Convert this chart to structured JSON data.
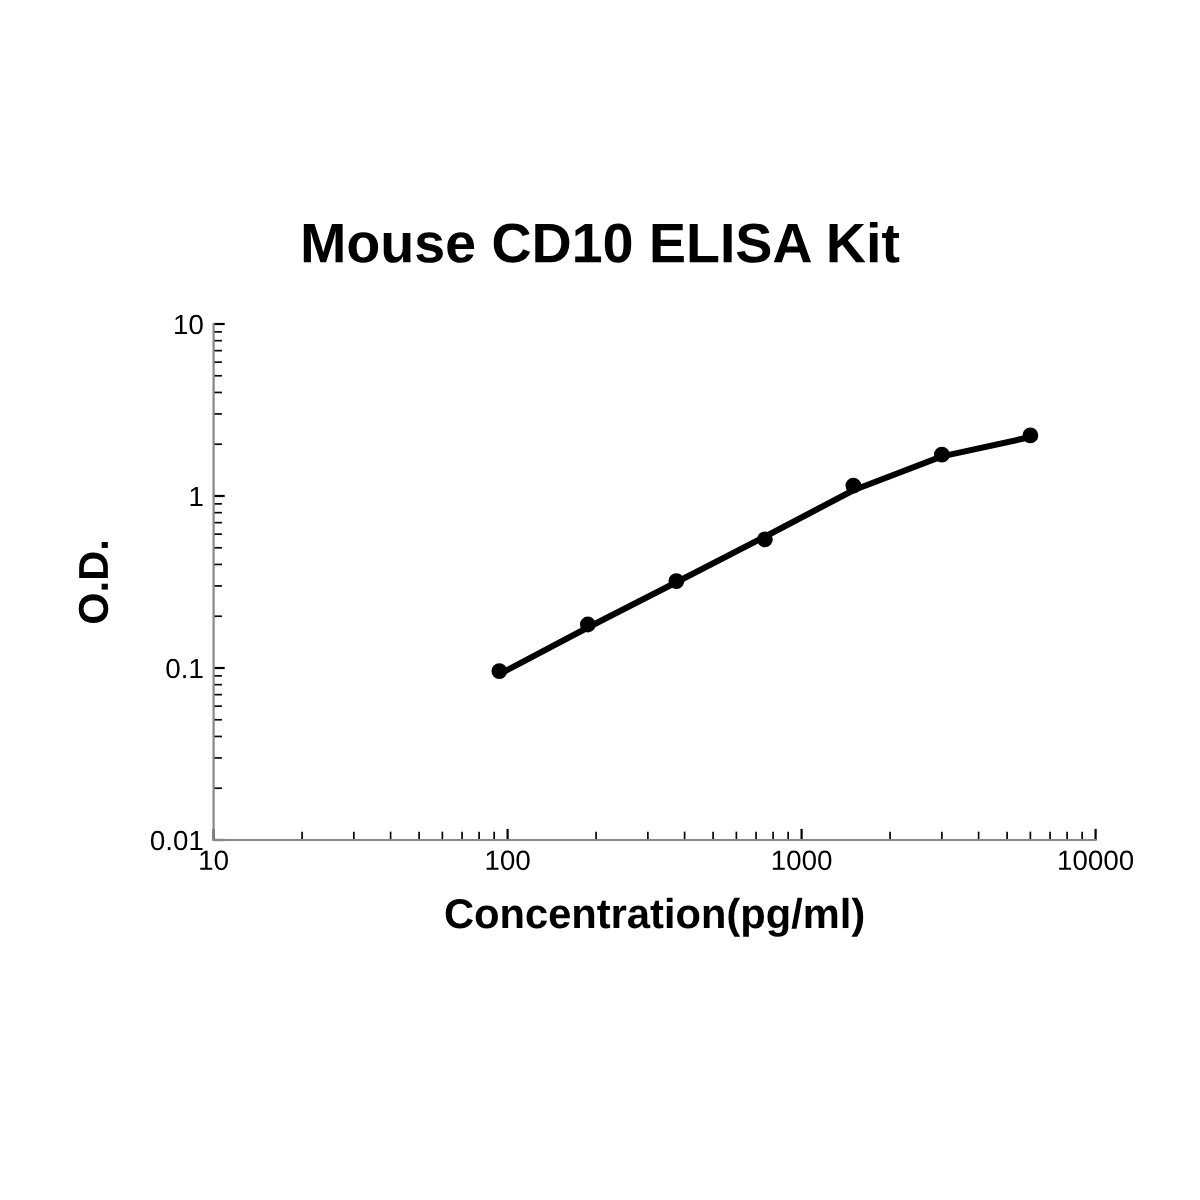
{
  "chart_data": {
    "type": "scatter",
    "title": "Mouse CD10 ELISA Kit",
    "xlabel": "Concentration(pg/ml)",
    "ylabel": "O.D.",
    "log": "xy",
    "xlim": [
      10,
      10000
    ],
    "xticks": [
      10,
      100,
      1000,
      10000
    ],
    "ylim": [
      0.01,
      10
    ],
    "yticks": [
      0.01,
      0.1,
      1,
      10
    ],
    "grid": false,
    "legend": false,
    "series": [
      {
        "color": "#000000",
        "marker": "circle",
        "x": [
          93.75,
          187.5,
          375,
          750,
          1500,
          3000,
          6000
        ],
        "values": [
          0.096,
          0.179,
          0.32,
          0.56,
          1.15,
          1.74,
          2.25
        ]
      },
      {
        "type": "line",
        "color": "#000000",
        "marker": "none",
        "line_style": "solid",
        "x": [
          93.75,
          187.5,
          375,
          750,
          1500,
          3000,
          6000
        ],
        "values": [
          0.092,
          0.172,
          0.315,
          0.58,
          1.08,
          1.7,
          2.2
        ]
      }
    ]
  }
}
